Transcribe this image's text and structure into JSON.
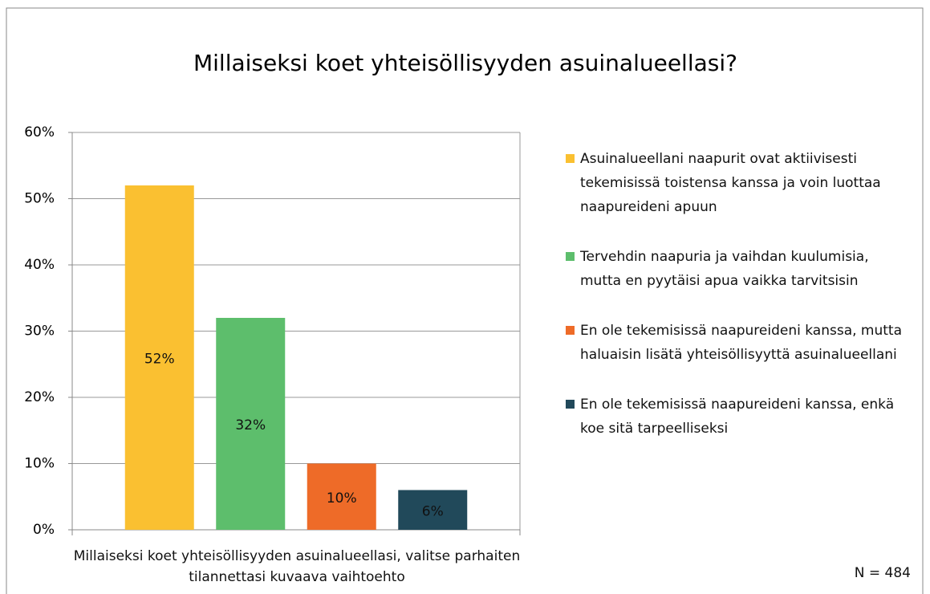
{
  "chart_data": {
    "type": "bar",
    "title": "Millaiseksi koet yhteisöllisyyden asuinalueellasi?",
    "categories": [
      "Millaiseksi koet yhteisöllisyyden asuinalueellasi, valitse parhaiten tilannettasi kuvaava vaihtoehto"
    ],
    "series": [
      {
        "name": "Asuinalueellani naapurit ovat aktiivisesti tekemisissä toistensa kanssa ja voin luottaa naapureideni apuun",
        "color": "#FAC031",
        "values": [
          52
        ],
        "value_labels": [
          "52%"
        ]
      },
      {
        "name": "Tervehdin naapuria ja vaihdan kuulumisia, mutta en pyytäisi apua vaikka tarvitsisin",
        "color": "#5DBE6C",
        "values": [
          32
        ],
        "value_labels": [
          "32%"
        ]
      },
      {
        "name": "En ole tekemisissä naapureideni kanssa, mutta haluaisin lisätä yhteisöllisyyttä asuinalueellani",
        "color": "#EE6B28",
        "values": [
          10
        ],
        "value_labels": [
          "10%"
        ]
      },
      {
        "name": "En ole tekemisissä naapureideni kanssa, enkä koe sitä tarpeelliseksi",
        "color": "#21495A",
        "values": [
          6
        ],
        "value_labels": [
          "6%"
        ]
      }
    ],
    "ylim": [
      0,
      60
    ],
    "yticks": [
      {
        "value": 0,
        "label": "0%"
      },
      {
        "value": 10,
        "label": "10%"
      },
      {
        "value": 20,
        "label": "20%"
      },
      {
        "value": 30,
        "label": "30%"
      },
      {
        "value": 40,
        "label": "40%"
      },
      {
        "value": 50,
        "label": "50%"
      },
      {
        "value": 60,
        "label": "60%"
      }
    ],
    "grid": true,
    "legend": "right",
    "annotation": "N = 484"
  }
}
